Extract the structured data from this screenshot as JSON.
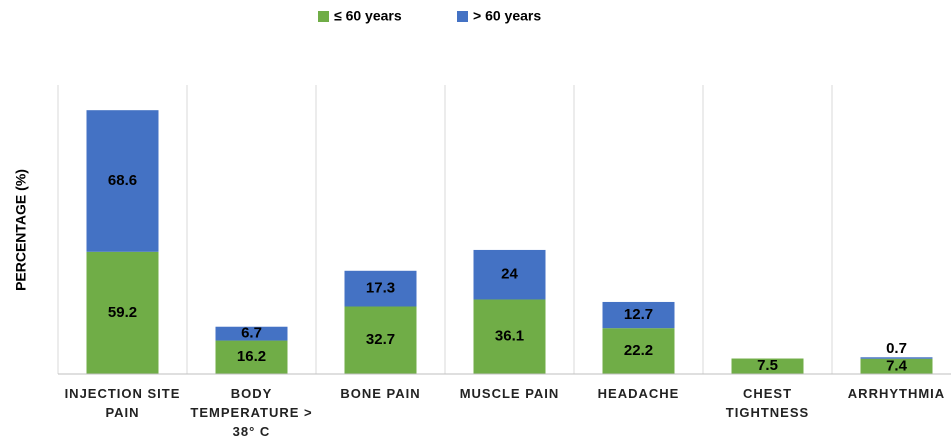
{
  "chart_data": {
    "type": "stacked_bar",
    "y_label": "PERCENTAGE (%)",
    "categories": [
      "INJECTION SITE PAIN",
      "BODY TEMPERATURE > 38° C",
      "BONE PAIN",
      "MUSCLE PAIN",
      "HEADACHE",
      "CHEST TIGHTNESS",
      "ARRHYTHMIA"
    ],
    "series": [
      {
        "name": "≤ 60 years",
        "color": "#70ad47",
        "values": [
          59.2,
          16.2,
          32.7,
          36.1,
          22.2,
          7.5,
          7.4
        ]
      },
      {
        "name": "> 60 years",
        "color": "#4472c4",
        "values": [
          68.6,
          6.7,
          17.3,
          24,
          12.7,
          null,
          0.7
        ]
      }
    ],
    "ylim": [
      0,
      140
    ],
    "legend": "top"
  }
}
